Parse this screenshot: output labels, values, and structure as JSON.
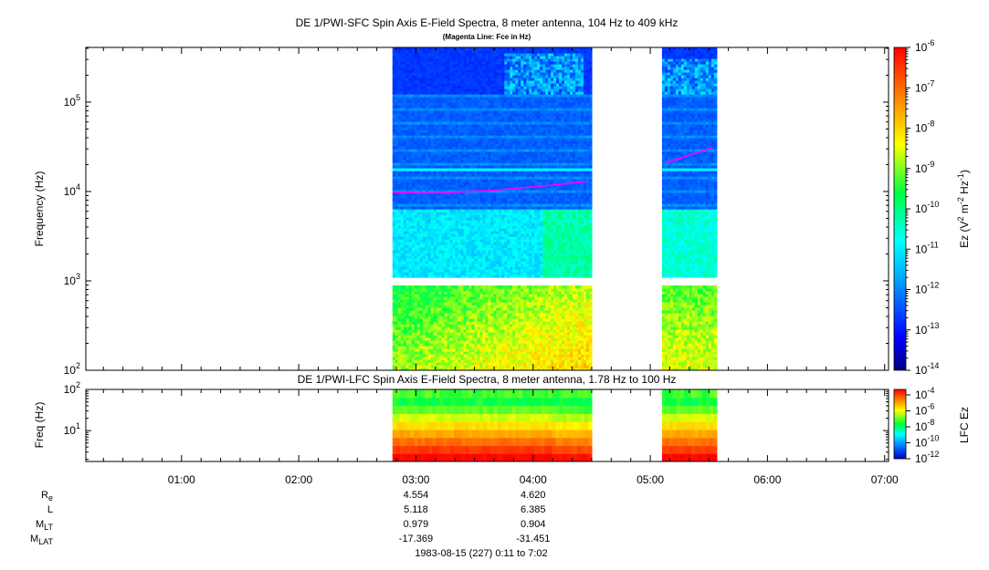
{
  "chart_data": [
    {
      "type": "heatmap",
      "title": "DE 1/PWI-SFC  Spin Axis E-Field Spectra, 8 meter antenna, 104 Hz to 409 kHz",
      "subtitle": "(Magenta Line: Fce in Hz)",
      "ylabel": "Frequency (Hz)",
      "y_scale": "log",
      "ylim": [
        100,
        409000
      ],
      "y_ticks": [
        {
          "base": "10",
          "exp": "2",
          "value": 100
        },
        {
          "base": "10",
          "exp": "3",
          "value": 1000
        },
        {
          "base": "10",
          "exp": "4",
          "value": 10000
        },
        {
          "base": "10",
          "exp": "5",
          "value": 100000
        }
      ],
      "colorbar": {
        "label_main": "Ez (V",
        "label_sup1": "2",
        "label_mid": " m",
        "label_sup2": "-2",
        "label_end": " Hz",
        "label_sup3": "-1",
        "label_close": ")",
        "scale": "log",
        "range": [
          1e-14,
          1e-06
        ],
        "ticks": [
          {
            "base": "10",
            "exp": "-6",
            "value": -6
          },
          {
            "base": "10",
            "exp": "-7",
            "value": -7
          },
          {
            "base": "10",
            "exp": "-8",
            "value": -8
          },
          {
            "base": "10",
            "exp": "-9",
            "value": -9
          },
          {
            "base": "10",
            "exp": "-10",
            "value": -10
          },
          {
            "base": "10",
            "exp": "-11",
            "value": -11
          },
          {
            "base": "10",
            "exp": "-12",
            "value": -12
          },
          {
            "base": "10",
            "exp": "-13",
            "value": -13
          },
          {
            "base": "10",
            "exp": "-14",
            "value": -14
          }
        ]
      },
      "data_intervals": [
        {
          "start": "02:48",
          "end": "04:30"
        },
        {
          "start": "05:06",
          "end": "05:34"
        }
      ],
      "gap_frequency_range_hz": [
        920,
        1050
      ],
      "fce_line_hz": [
        {
          "t": "02:48",
          "f": 9800
        },
        {
          "t": "03:10",
          "f": 9600
        },
        {
          "t": "03:40",
          "f": 10300
        },
        {
          "t": "04:10",
          "f": 11800
        },
        {
          "t": "04:28",
          "f": 13000
        },
        {
          "t": "05:08",
          "f": 21000
        },
        {
          "t": "05:32",
          "f": 31000
        }
      ]
    },
    {
      "type": "heatmap",
      "title": "DE 1/PWI-LFC  Spin Axis E-Field Spectra, 8 meter antenna, 1.78 Hz to 100 Hz",
      "ylabel": "Freq (Hz)",
      "y_scale": "log",
      "ylim": [
        1.78,
        100
      ],
      "y_ticks": [
        {
          "base": "10",
          "exp": "1",
          "value": 10
        },
        {
          "base": "10",
          "exp": "2",
          "value": 100
        }
      ],
      "colorbar": {
        "label": "LFC Ez",
        "scale": "log",
        "range": [
          1e-12,
          0.0001
        ],
        "ticks": [
          {
            "base": "10",
            "exp": "-4",
            "value": -4
          },
          {
            "base": "10",
            "exp": "-6",
            "value": -6
          },
          {
            "base": "10",
            "exp": "-8",
            "value": -8
          },
          {
            "base": "10",
            "exp": "-10",
            "value": -10
          },
          {
            "base": "10",
            "exp": "-12",
            "value": -12
          }
        ]
      },
      "data_intervals": [
        {
          "start": "02:48",
          "end": "04:30"
        },
        {
          "start": "05:06",
          "end": "05:34"
        }
      ]
    }
  ],
  "time_axis": {
    "range": [
      "00:11",
      "07:02"
    ],
    "ticks": [
      "01:00",
      "02:00",
      "03:00",
      "04:00",
      "05:00",
      "06:00",
      "07:00"
    ]
  },
  "ephemeris": {
    "labels": [
      {
        "main": "R",
        "sub": "e"
      },
      {
        "main": "L",
        "sub": ""
      },
      {
        "main": "M",
        "sub": "LT"
      },
      {
        "main": "M",
        "sub": "LAT"
      }
    ],
    "columns": [
      {
        "time": "03:00",
        "values": [
          "4.554",
          "5.118",
          "0.979",
          "-17.369"
        ]
      },
      {
        "time": "04:00",
        "values": [
          "4.620",
          "6.385",
          "0.904",
          "-31.451"
        ]
      }
    ]
  },
  "footer": "1983-08-15 (227) 0:11 to 7:02"
}
